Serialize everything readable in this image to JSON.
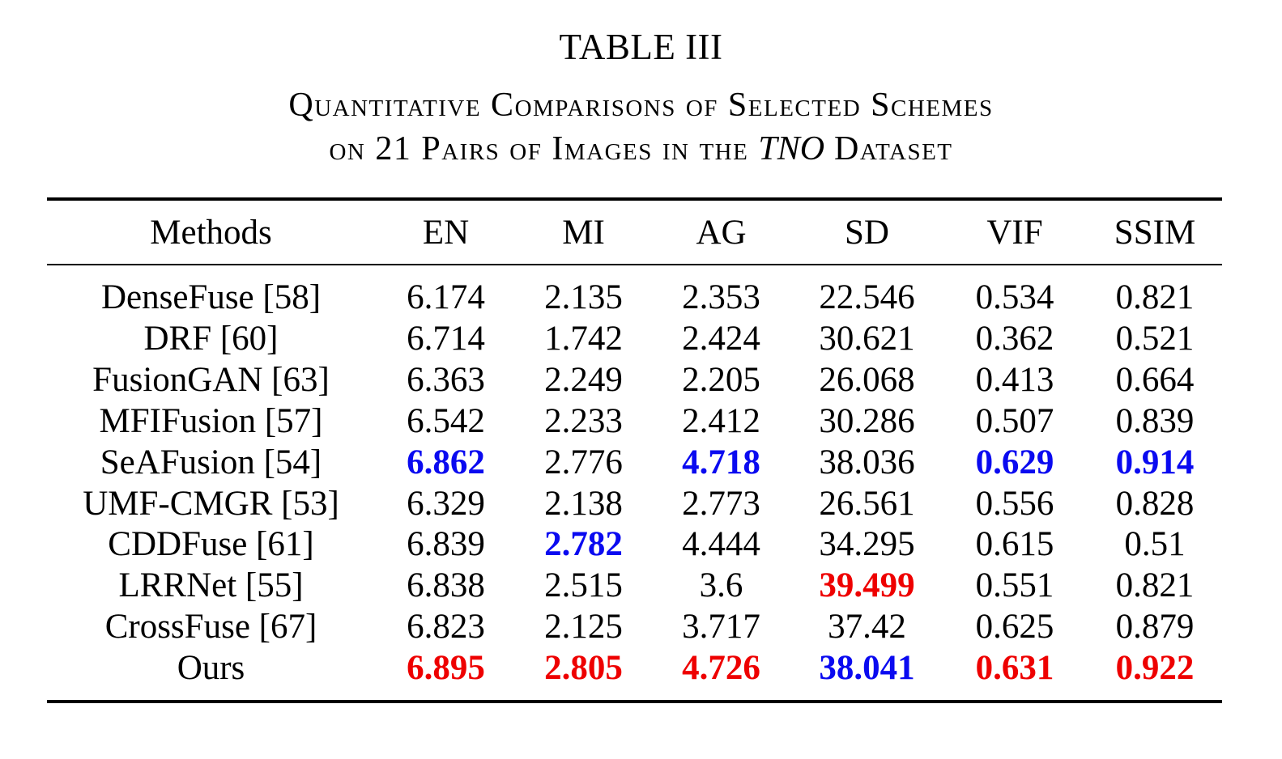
{
  "table_label": "TABLE III",
  "caption": {
    "line1": "Quantitative Comparisons of Selected Schemes",
    "line2_prefix": "on 21 Pairs of Images in the ",
    "line2_italic": "TNO",
    "line2_suffix": " Dataset"
  },
  "colors": {
    "best": "#ee0000",
    "second_best": "#0a0af0"
  },
  "columns": [
    "Methods",
    "EN",
    "MI",
    "AG",
    "SD",
    "VIF",
    "SSIM"
  ],
  "rows": [
    {
      "method": "DenseFuse [58]",
      "values": [
        "6.174",
        "2.135",
        "2.353",
        "22.546",
        "0.534",
        "0.821"
      ],
      "styles": [
        "",
        "",
        "",
        "",
        "",
        ""
      ]
    },
    {
      "method": "DRF [60]",
      "values": [
        "6.714",
        "1.742",
        "2.424",
        "30.621",
        "0.362",
        "0.521"
      ],
      "styles": [
        "",
        "",
        "",
        "",
        "",
        ""
      ]
    },
    {
      "method": "FusionGAN [63]",
      "values": [
        "6.363",
        "2.249",
        "2.205",
        "26.068",
        "0.413",
        "0.664"
      ],
      "styles": [
        "",
        "",
        "",
        "",
        "",
        ""
      ]
    },
    {
      "method": "MFIFusion [57]",
      "values": [
        "6.542",
        "2.233",
        "2.412",
        "30.286",
        "0.507",
        "0.839"
      ],
      "styles": [
        "",
        "",
        "",
        "",
        "",
        ""
      ]
    },
    {
      "method": "SeAFusion [54]",
      "values": [
        "6.862",
        "2.776",
        "4.718",
        "38.036",
        "0.629",
        "0.914"
      ],
      "styles": [
        "second",
        "",
        "second",
        "",
        "second",
        "second"
      ]
    },
    {
      "method": "UMF-CMGR [53]",
      "values": [
        "6.329",
        "2.138",
        "2.773",
        "26.561",
        "0.556",
        "0.828"
      ],
      "styles": [
        "",
        "",
        "",
        "",
        "",
        ""
      ]
    },
    {
      "method": "CDDFuse [61]",
      "values": [
        "6.839",
        "2.782",
        "4.444",
        "34.295",
        "0.615",
        "0.51"
      ],
      "styles": [
        "",
        "second",
        "",
        "",
        "",
        ""
      ]
    },
    {
      "method": "LRRNet [55]",
      "values": [
        "6.838",
        "2.515",
        "3.6",
        "39.499",
        "0.551",
        "0.821"
      ],
      "styles": [
        "",
        "",
        "",
        "best",
        "",
        ""
      ]
    },
    {
      "method": "CrossFuse [67]",
      "values": [
        "6.823",
        "2.125",
        "3.717",
        "37.42",
        "0.625",
        "0.879"
      ],
      "styles": [
        "",
        "",
        "",
        "",
        "",
        ""
      ]
    },
    {
      "method": "Ours",
      "values": [
        "6.895",
        "2.805",
        "4.726",
        "38.041",
        "0.631",
        "0.922"
      ],
      "styles": [
        "best",
        "best",
        "best",
        "second",
        "best",
        "best"
      ]
    }
  ]
}
